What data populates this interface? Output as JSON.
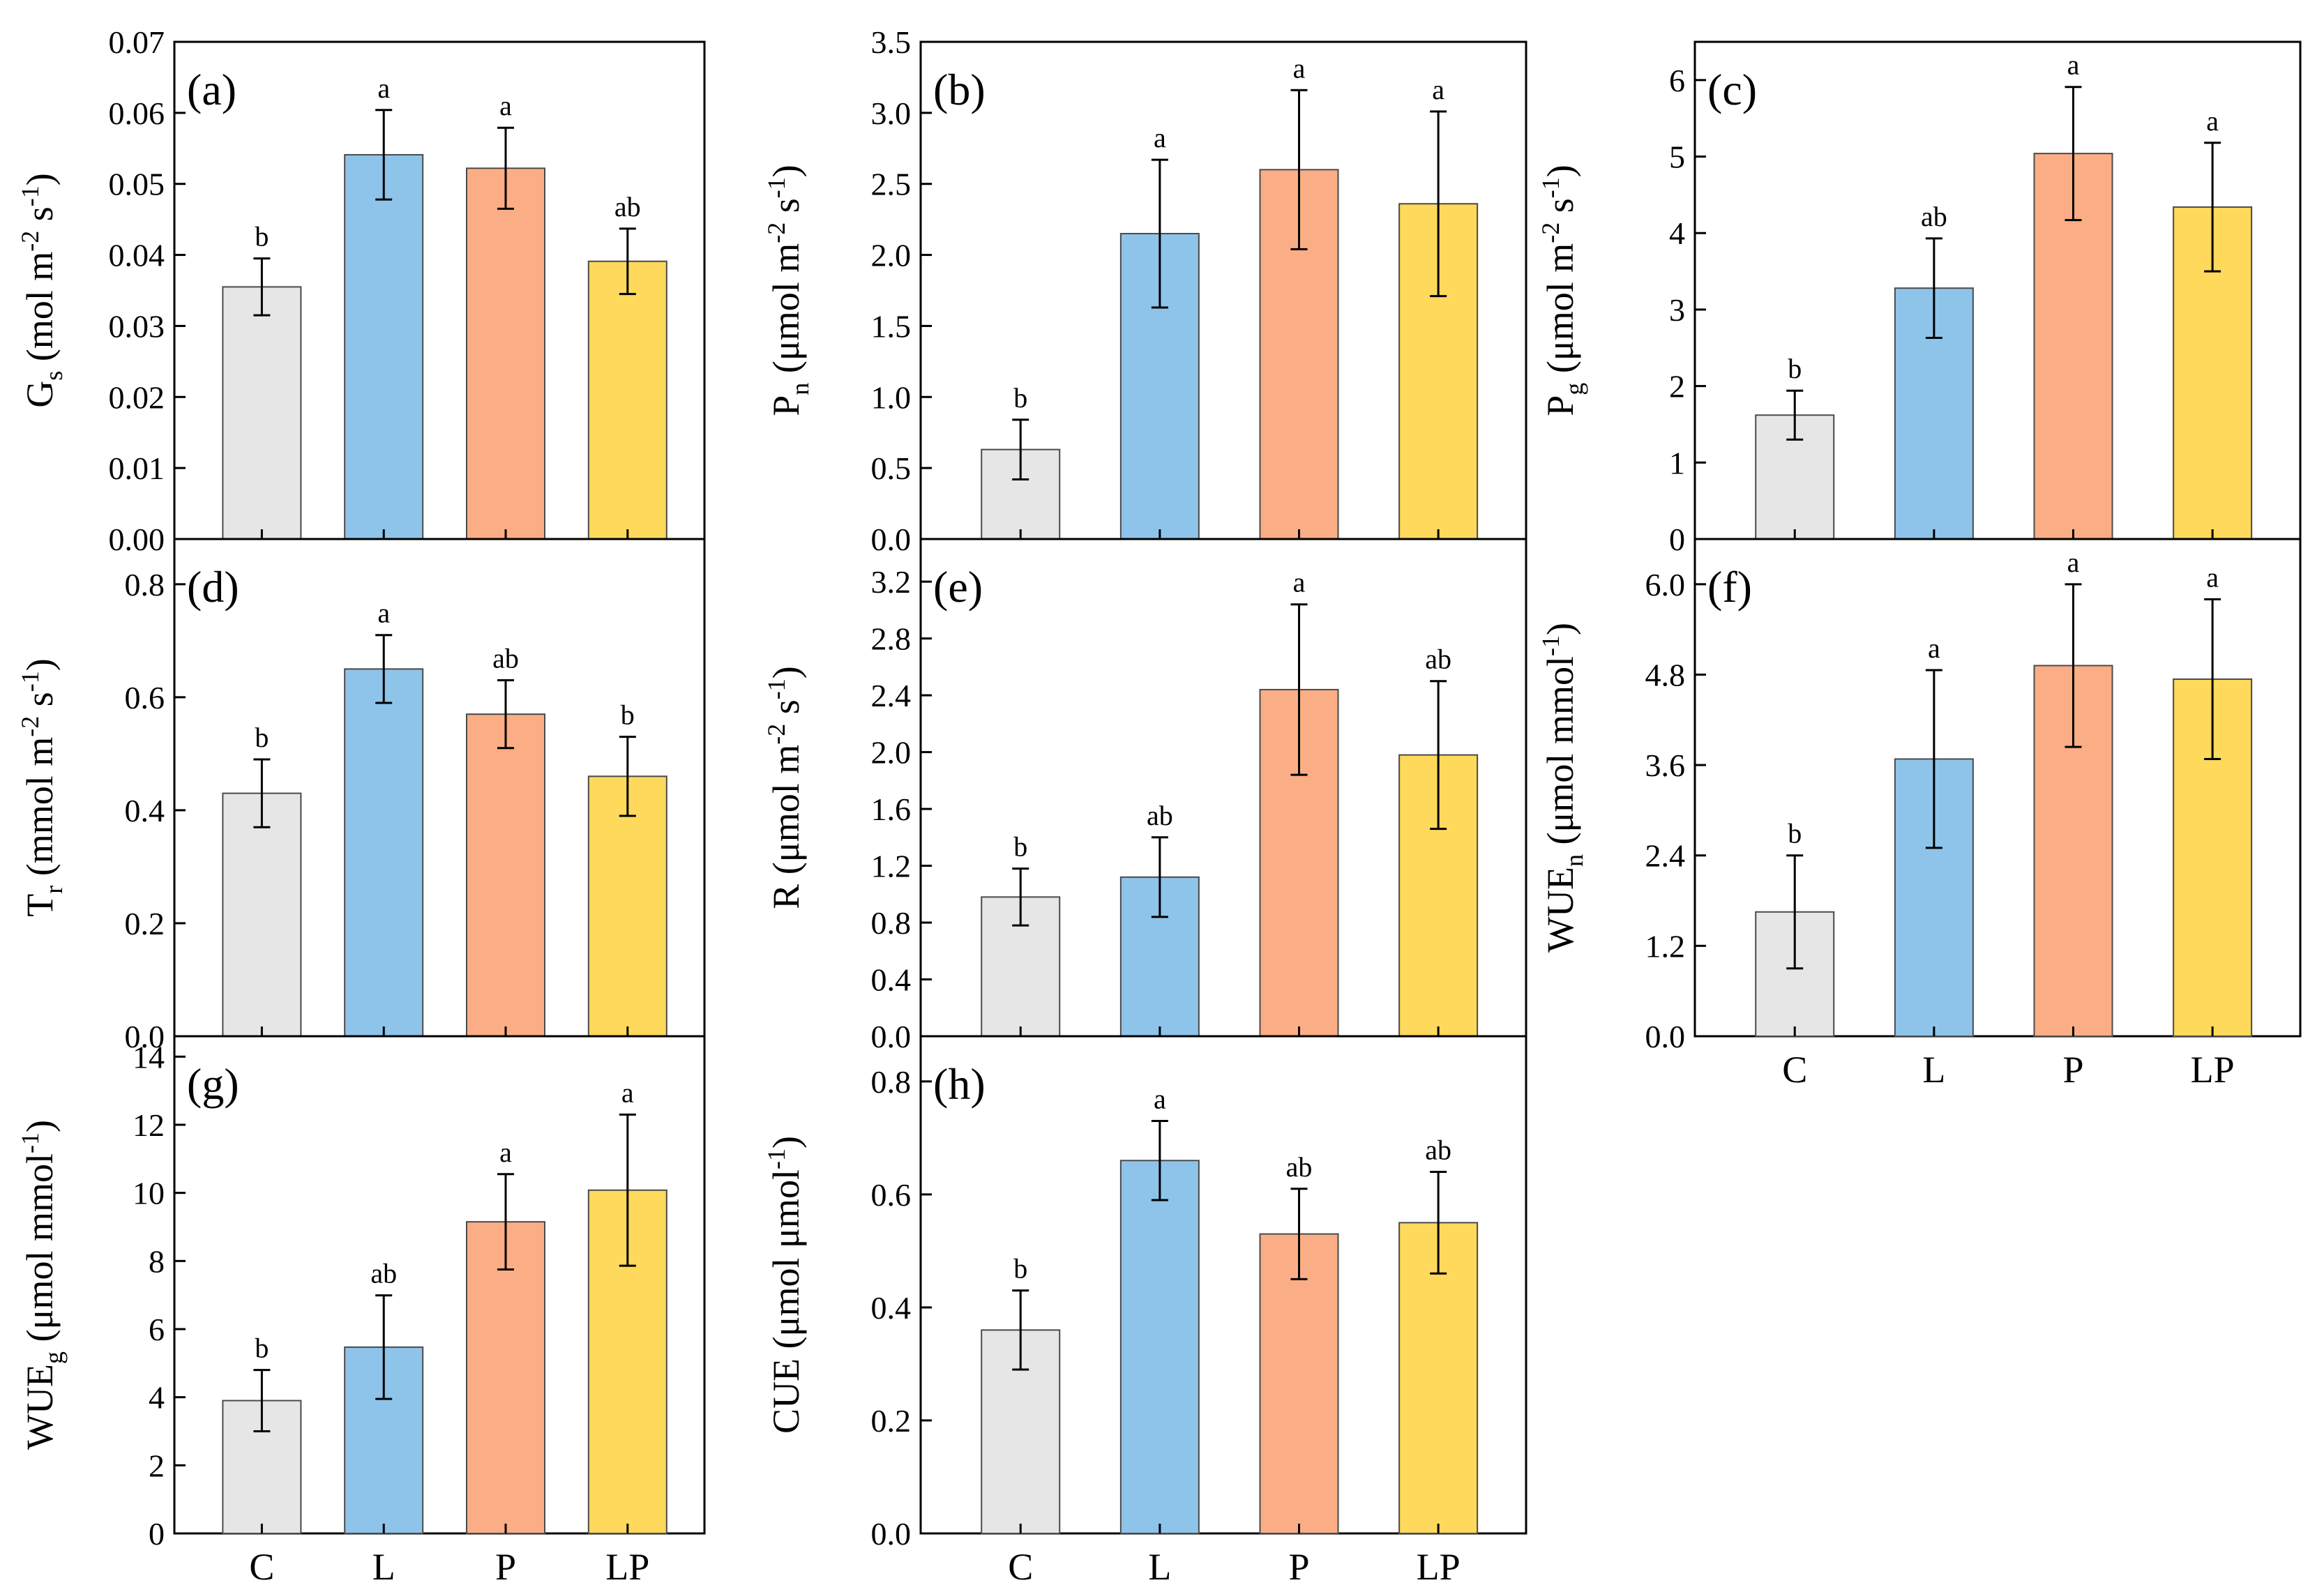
{
  "chart_data": [
    {
      "type": "bar",
      "panel_label": "(a)",
      "ylabel_main": "G",
      "ylabel_sub": "s",
      "ylabel_rest": " (mol m",
      "ylabel_sup1": "-2",
      "ylabel_mid": " s",
      "ylabel_sup2": "-1",
      "ylabel_end": ")",
      "categories": [
        "C",
        "L",
        "P",
        "LP"
      ],
      "values": [
        0.0355,
        0.0541,
        0.0522,
        0.0391
      ],
      "errors": [
        0.004,
        0.0063,
        0.0057,
        0.0046
      ],
      "significance": [
        "b",
        "a",
        "a",
        "ab"
      ],
      "ylim": [
        0,
        0.07
      ],
      "yticks": [
        "0.00",
        "0.01",
        "0.02",
        "0.03",
        "0.04",
        "0.05",
        "0.06",
        "0.07"
      ],
      "show_xlabels": false
    },
    {
      "type": "bar",
      "panel_label": "(b)",
      "ylabel_main": "P",
      "ylabel_sub": "n",
      "ylabel_rest": " (μmol m",
      "ylabel_sup1": "-2",
      "ylabel_mid": " s",
      "ylabel_sup2": "-1",
      "ylabel_end": ")",
      "categories": [
        "C",
        "L",
        "P",
        "LP"
      ],
      "values": [
        0.63,
        2.15,
        2.6,
        2.36
      ],
      "errors": [
        0.21,
        0.52,
        0.56,
        0.65
      ],
      "significance": [
        "b",
        "a",
        "a",
        "a"
      ],
      "ylim": [
        0,
        3.5
      ],
      "yticks": [
        "0.0",
        "0.5",
        "1.0",
        "1.5",
        "2.0",
        "2.5",
        "3.0",
        "3.5"
      ],
      "show_xlabels": false
    },
    {
      "type": "bar",
      "panel_label": "(c)",
      "ylabel_main": "P",
      "ylabel_sub": "g",
      "ylabel_rest": " (μmol m",
      "ylabel_sup1": "-2",
      "ylabel_mid": " s",
      "ylabel_sup2": "-1",
      "ylabel_end": ")",
      "categories": [
        "C",
        "L",
        "P",
        "LP"
      ],
      "values": [
        1.62,
        3.28,
        5.04,
        4.34
      ],
      "errors": [
        0.32,
        0.65,
        0.87,
        0.84
      ],
      "significance": [
        "b",
        "ab",
        "a",
        "a"
      ],
      "ylim": [
        0,
        6.5
      ],
      "yticks": [
        "0",
        "1",
        "2",
        "3",
        "4",
        "5",
        "6"
      ],
      "show_xlabels": false
    },
    {
      "type": "bar",
      "panel_label": "(d)",
      "ylabel_main": "T",
      "ylabel_sub": "r",
      "ylabel_rest": " (mmol m",
      "ylabel_sup1": "-2",
      "ylabel_mid": " s",
      "ylabel_sup2": "-1",
      "ylabel_end": ")",
      "categories": [
        "C",
        "L",
        "P",
        "LP"
      ],
      "values": [
        0.43,
        0.65,
        0.57,
        0.46
      ],
      "errors": [
        0.06,
        0.06,
        0.06,
        0.07
      ],
      "significance": [
        "b",
        "a",
        "ab",
        "b"
      ],
      "ylim": [
        0,
        0.88
      ],
      "yticks": [
        "0.0",
        "0.2",
        "0.4",
        "0.6",
        "0.8"
      ],
      "show_xlabels": false
    },
    {
      "type": "bar",
      "panel_label": "(e)",
      "ylabel_main": "R",
      "ylabel_sub": "",
      "ylabel_rest": " (μmol m",
      "ylabel_sup1": "-2",
      "ylabel_mid": " s",
      "ylabel_sup2": "-1",
      "ylabel_end": ")",
      "categories": [
        "C",
        "L",
        "P",
        "LP"
      ],
      "values": [
        0.98,
        1.12,
        2.44,
        1.98
      ],
      "errors": [
        0.2,
        0.28,
        0.6,
        0.52
      ],
      "significance": [
        "b",
        "ab",
        "a",
        "ab"
      ],
      "ylim": [
        0,
        3.5
      ],
      "yticks": [
        "0.0",
        "0.4",
        "0.8",
        "1.2",
        "1.6",
        "2.0",
        "2.4",
        "2.8",
        "3.2"
      ],
      "show_xlabels": false
    },
    {
      "type": "bar",
      "panel_label": "(f)",
      "ylabel_main": "WUE",
      "ylabel_sub": "n",
      "ylabel_rest": " (μmol mmol",
      "ylabel_sup1": "-1",
      "ylabel_mid": "",
      "ylabel_sup2": "",
      "ylabel_end": ")",
      "categories": [
        "C",
        "L",
        "P",
        "LP"
      ],
      "values": [
        1.65,
        3.68,
        4.92,
        4.74
      ],
      "errors": [
        0.75,
        1.18,
        1.08,
        1.06
      ],
      "significance": [
        "b",
        "a",
        "a",
        "a"
      ],
      "ylim": [
        0,
        6.6
      ],
      "yticks": [
        "0.0",
        "1.2",
        "2.4",
        "3.6",
        "4.8",
        "6.0"
      ],
      "show_xlabels": true
    },
    {
      "type": "bar",
      "panel_label": "(g)",
      "ylabel_main": "WUE",
      "ylabel_sub": "g",
      "ylabel_rest": " (μmol mmol",
      "ylabel_sup1": "-1",
      "ylabel_mid": "",
      "ylabel_sup2": "",
      "ylabel_end": ")",
      "categories": [
        "C",
        "L",
        "P",
        "LP"
      ],
      "values": [
        3.9,
        5.47,
        9.15,
        10.08
      ],
      "errors": [
        0.9,
        1.52,
        1.4,
        2.22
      ],
      "significance": [
        "b",
        "ab",
        "a",
        "a"
      ],
      "ylim": [
        0,
        14.6
      ],
      "yticks": [
        "0",
        "2",
        "4",
        "6",
        "8",
        "10",
        "12",
        "14"
      ],
      "show_xlabels": true
    },
    {
      "type": "bar",
      "panel_label": "(h)",
      "ylabel_main": "CUE",
      "ylabel_sub": "",
      "ylabel_rest": " (μmol μmol",
      "ylabel_sup1": "-1",
      "ylabel_mid": "",
      "ylabel_sup2": "",
      "ylabel_end": ")",
      "categories": [
        "C",
        "L",
        "P",
        "LP"
      ],
      "values": [
        0.36,
        0.66,
        0.53,
        0.55
      ],
      "errors": [
        0.07,
        0.07,
        0.08,
        0.09
      ],
      "significance": [
        "b",
        "a",
        "ab",
        "ab"
      ],
      "ylim": [
        0,
        0.88
      ],
      "yticks": [
        "0.0",
        "0.2",
        "0.4",
        "0.6",
        "0.8"
      ],
      "show_xlabels": true
    }
  ],
  "colors": {
    "C": "#e6e6e6",
    "L": "#8ec4ea",
    "P": "#fbae85",
    "LP": "#fed95c"
  }
}
